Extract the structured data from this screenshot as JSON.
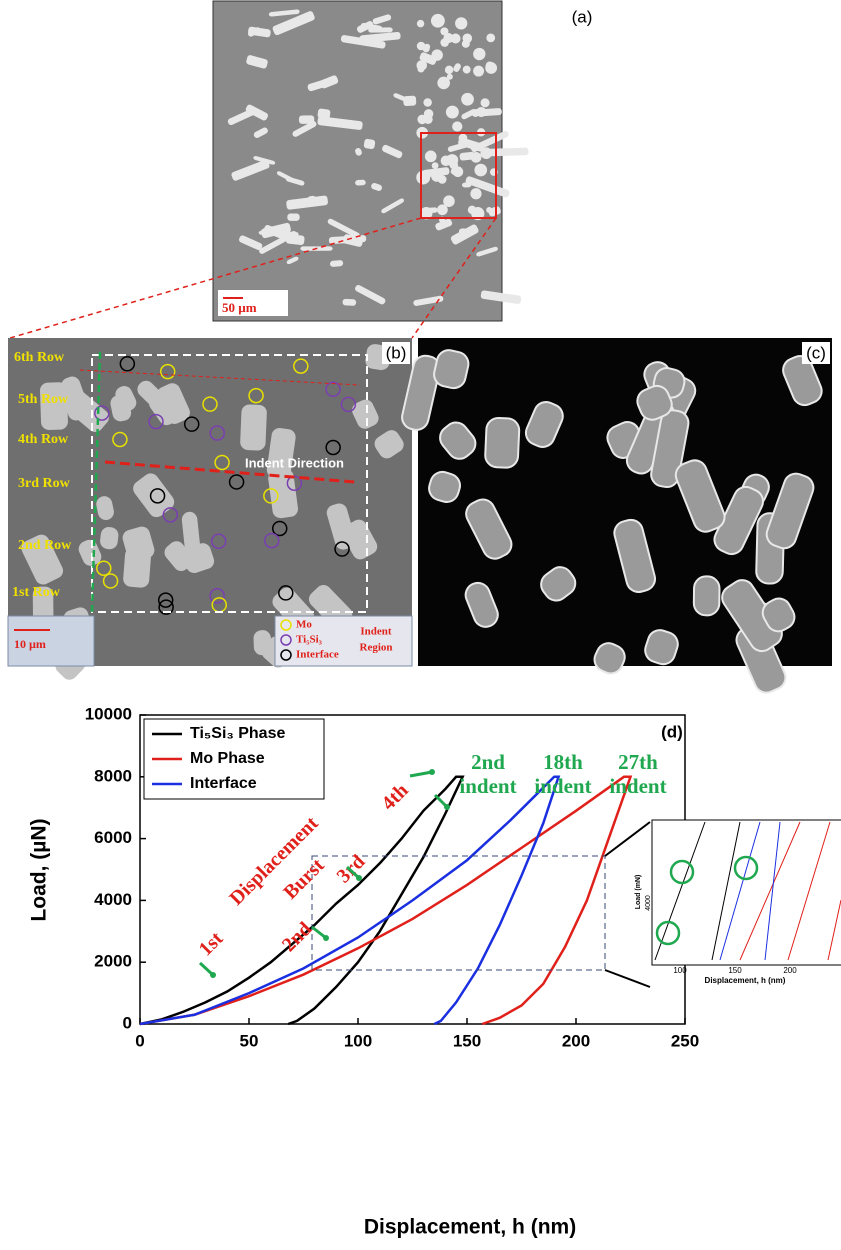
{
  "panels": {
    "a": {
      "label": "(a)",
      "scale": "50 µm"
    },
    "b": {
      "label": "(b)",
      "rows": [
        "6th Row",
        "5th Row",
        "4th Row",
        "3rd Row",
        "2nd Row",
        "1st Row"
      ],
      "direction": "Indent Direction",
      "scale": "10 µm",
      "legend": [
        "Mo",
        "Ti₅Si₃",
        "Interface"
      ],
      "region": [
        "Indent",
        "Region"
      ]
    },
    "c": {
      "label": "(c)"
    }
  },
  "inset": {
    "xlabel": "Displacement, h (nm)",
    "ylabel": "Load (mN)",
    "xticks": [
      "100",
      "150",
      "200"
    ],
    "yticks": [
      "4000"
    ]
  },
  "chart_data": {
    "type": "line",
    "xlabel": "Displacement, h (nm)",
    "ylabel": "Load, (µN)",
    "xlim": [
      0,
      250
    ],
    "xticks": [
      0,
      50,
      100,
      150,
      200,
      250
    ],
    "ylim": [
      0,
      10000
    ],
    "yticks": [
      0,
      2000,
      4000,
      6000,
      8000,
      10000
    ],
    "legend": "upper left",
    "series": [
      {
        "name": "Ti₅Si₃ Phase",
        "color": "#000000",
        "x": [
          0,
          10,
          20,
          30,
          40,
          50,
          60,
          70,
          80,
          90,
          100,
          110,
          120,
          130,
          140,
          145,
          148,
          140,
          130,
          120,
          110,
          100,
          90,
          80,
          72,
          68
        ],
        "values": [
          0,
          150,
          400,
          700,
          1050,
          1500,
          2000,
          2600,
          3200,
          3900,
          4500,
          5200,
          6000,
          6900,
          7600,
          8000,
          8000,
          6800,
          5400,
          4200,
          3000,
          2000,
          1200,
          500,
          100,
          0
        ]
      },
      {
        "name": "Mo Phase",
        "color": "#e0201a",
        "x": [
          0,
          25,
          50,
          75,
          100,
          125,
          150,
          175,
          200,
          222,
          225,
          215,
          205,
          195,
          185,
          175,
          165,
          157
        ],
        "values": [
          0,
          300,
          900,
          1600,
          2450,
          3400,
          4500,
          5700,
          6900,
          8000,
          8000,
          6000,
          4000,
          2500,
          1300,
          600,
          200,
          0
        ]
      },
      {
        "name": "Interface",
        "color": "#1a2fe0",
        "x": [
          0,
          25,
          50,
          75,
          100,
          125,
          150,
          170,
          180,
          190,
          192,
          185,
          175,
          165,
          155,
          145,
          138,
          135
        ],
        "values": [
          0,
          300,
          1000,
          1800,
          2800,
          4000,
          5300,
          6600,
          7300,
          8000,
          8000,
          6500,
          4800,
          3200,
          1800,
          700,
          100,
          0
        ]
      }
    ],
    "annotations": [
      "(d)",
      "2nd",
      "indent",
      "18th",
      "indent",
      "27th",
      "indent",
      "Displacement",
      "Burst",
      "1st",
      "2nd",
      "3rd",
      "4th"
    ]
  }
}
